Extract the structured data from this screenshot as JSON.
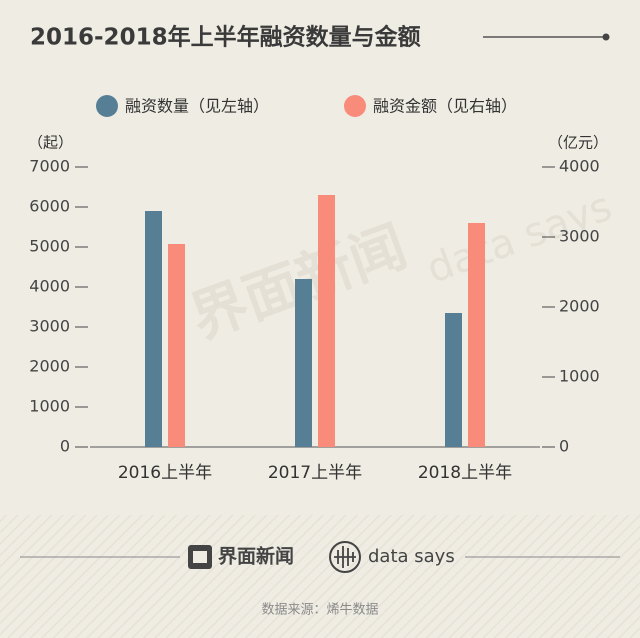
{
  "chart_data": {
    "type": "bar",
    "title": "2016-2018年上半年融资数量与金额",
    "y_label": "（起）",
    "y2_label": "（亿元）",
    "categories": [
      "2016上半年",
      "2017上半年",
      "2018上半年"
    ],
    "series": [
      {
        "name": "融资数量（见左轴）",
        "color": "#567f96",
        "values": [
          5900,
          4200,
          3350
        ]
      },
      {
        "name": "融资金额（见右轴）",
        "color": "#f98b7b",
        "values": [
          2900,
          3600,
          3200
        ],
        "axis": "y2"
      }
    ],
    "ylim": [
      0,
      7000
    ],
    "yticks": [
      0,
      1000,
      2000,
      3000,
      4000,
      5000,
      6000,
      7000
    ],
    "y2lim": [
      0,
      4000
    ],
    "y2ticks": [
      0,
      1000,
      2000,
      3000,
      4000
    ],
    "grid": false
  },
  "footer": {
    "brand": "界面新闻",
    "partner": "data says",
    "source": "数据来源：烯牛数据"
  }
}
